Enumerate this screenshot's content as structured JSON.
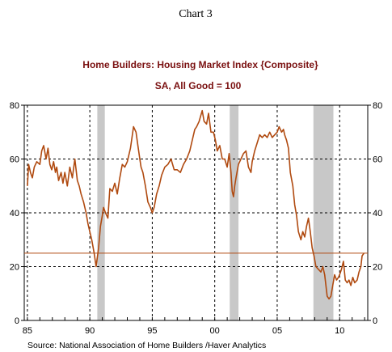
{
  "page": {
    "heading": "Chart 3",
    "source": "Source:  National Association of Home Builders /Haver Analytics"
  },
  "chart_data": {
    "type": "line",
    "title": "Home Builders: Housing Market Index  {Composite}",
    "subtitle": "SA, All Good = 100",
    "xlabel": "",
    "ylabel": "",
    "x_tick_labels": [
      "85",
      "90",
      "95",
      "00",
      "05",
      "10"
    ],
    "x_ticks": [
      1985,
      1990,
      1995,
      2000,
      2005,
      2010
    ],
    "y_ticks": [
      0,
      20,
      40,
      60,
      80
    ],
    "y_tick_labels": [
      "0",
      "20",
      "40",
      "60",
      "80"
    ],
    "xlim": [
      1984.75,
      2012.25
    ],
    "ylim": [
      0,
      80
    ],
    "grid": true,
    "legend": "none",
    "colors": {
      "series": "#b04a10",
      "reference": "#b04a10",
      "recession": "#c8c8c8",
      "title": "#7a1010"
    },
    "reference_line": 25,
    "recessions": [
      [
        1990.6,
        1991.2
      ],
      [
        2001.2,
        2001.9
      ],
      [
        2007.9,
        2009.5
      ]
    ],
    "series": [
      {
        "x": [
          1985.0,
          1985.1,
          1985.25,
          1985.4,
          1985.55,
          1985.75,
          1986.0,
          1986.15,
          1986.3,
          1986.5,
          1986.65,
          1986.8,
          1986.95,
          1987.1,
          1987.25,
          1987.35,
          1987.5,
          1987.7,
          1987.85,
          1988.0,
          1988.2,
          1988.4,
          1988.6,
          1988.8,
          1989.0,
          1989.15,
          1989.3,
          1989.5,
          1989.7,
          1989.85,
          1990.0,
          1990.15,
          1990.35,
          1990.5,
          1990.7,
          1990.85,
          1991.0,
          1991.1,
          1991.25,
          1991.45,
          1991.6,
          1991.8,
          1992.0,
          1992.2,
          1992.4,
          1992.6,
          1992.8,
          1993.0,
          1993.25,
          1993.5,
          1993.7,
          1993.85,
          1994.0,
          1994.1,
          1994.25,
          1994.45,
          1994.65,
          1994.85,
          1995.0,
          1995.15,
          1995.35,
          1995.55,
          1995.75,
          1996.0,
          1996.25,
          1996.5,
          1996.75,
          1997.0,
          1997.25,
          1997.5,
          1997.75,
          1998.0,
          1998.2,
          1998.4,
          1998.55,
          1998.75,
          1999.0,
          1999.15,
          1999.35,
          1999.5,
          1999.7,
          1999.9,
          2000.05,
          2000.2,
          2000.4,
          2000.6,
          2000.8,
          2001.0,
          2001.15,
          2001.3,
          2001.4,
          2001.5,
          2001.6,
          2001.7,
          2001.9,
          2002.1,
          2002.3,
          2002.5,
          2002.7,
          2002.9,
          2003.0,
          2003.2,
          2003.4,
          2003.6,
          2003.8,
          2004.0,
          2004.2,
          2004.4,
          2004.6,
          2004.8,
          2005.0,
          2005.15,
          2005.35,
          2005.5,
          2005.6,
          2005.75,
          2005.9,
          2006.05,
          2006.25,
          2006.4,
          2006.55,
          2006.7,
          2006.9,
          2007.05,
          2007.2,
          2007.35,
          2007.5,
          2007.65,
          2007.8,
          2007.95,
          2008.1,
          2008.3,
          2008.5,
          2008.65,
          2008.8,
          2009.0,
          2009.15,
          2009.3,
          2009.45,
          2009.6,
          2009.75,
          2009.9,
          2010.0,
          2010.15,
          2010.3,
          2010.45,
          2010.6,
          2010.75,
          2010.9,
          2011.05,
          2011.2,
          2011.4,
          2011.55,
          2011.7,
          2011.8,
          2011.95
        ],
        "y": [
          50,
          58,
          55,
          53,
          57,
          59,
          58,
          63,
          65,
          60,
          64,
          58,
          56,
          59,
          55,
          57,
          52,
          55,
          51,
          55,
          50,
          57,
          53,
          60,
          52,
          50,
          47,
          44,
          40,
          36,
          33,
          30,
          25,
          20,
          27,
          35,
          39,
          42,
          40,
          38,
          49,
          48,
          51,
          47,
          53,
          58,
          57,
          59,
          64,
          72,
          70,
          65,
          60,
          57,
          55,
          50,
          44,
          42,
          40,
          42,
          47,
          50,
          54,
          57,
          58,
          60,
          56,
          56,
          55,
          58,
          60,
          63,
          67,
          71,
          72,
          74,
          78,
          74,
          73,
          77,
          70,
          70,
          67,
          63,
          65,
          60,
          60,
          57,
          62,
          55,
          48,
          46,
          50,
          53,
          58,
          60,
          62,
          63,
          57,
          55,
          59,
          63,
          66,
          69,
          68,
          69,
          68,
          70,
          68,
          69,
          70,
          72,
          70,
          71,
          69,
          67,
          64,
          55,
          50,
          43,
          39,
          33,
          30,
          33,
          31,
          35,
          38,
          33,
          27,
          24,
          20,
          19,
          18,
          20,
          17,
          9,
          8,
          9,
          13,
          17,
          15,
          16,
          17,
          19,
          22,
          15,
          14,
          15,
          13,
          16,
          14,
          15,
          18,
          20,
          24,
          25
        ]
      }
    ]
  }
}
